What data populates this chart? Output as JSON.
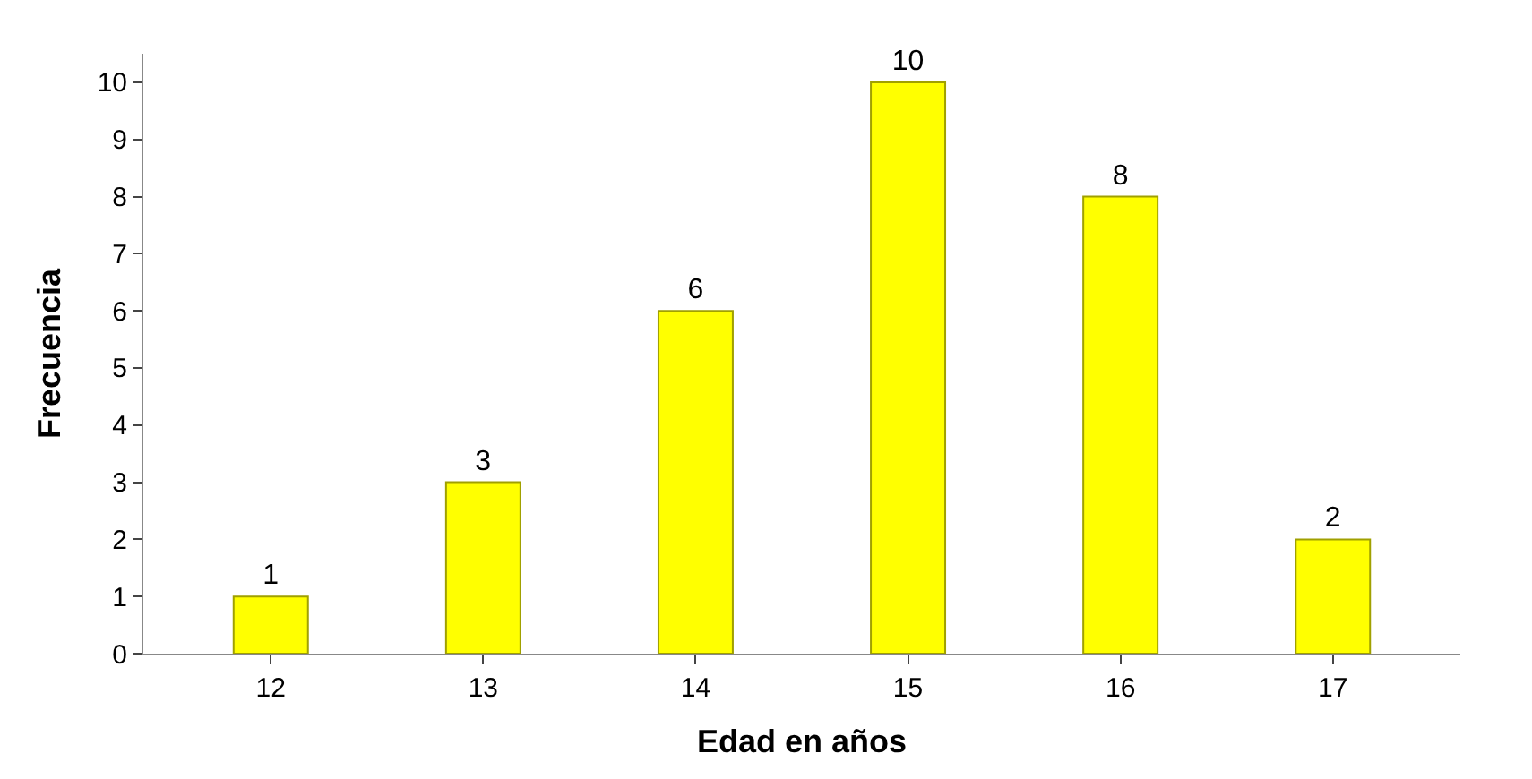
{
  "chart_data": {
    "type": "bar",
    "xlabel": "Edad en años",
    "ylabel": "Frecuencia",
    "categories": [
      "12",
      "13",
      "14",
      "15",
      "16",
      "17"
    ],
    "values": [
      1,
      3,
      6,
      10,
      8,
      2
    ],
    "color": "#ffff00",
    "ylim": [
      0,
      10.5
    ],
    "yticks": [
      0,
      1,
      2,
      3,
      4,
      5,
      6,
      7,
      8,
      9,
      10
    ],
    "data_labels": true
  }
}
